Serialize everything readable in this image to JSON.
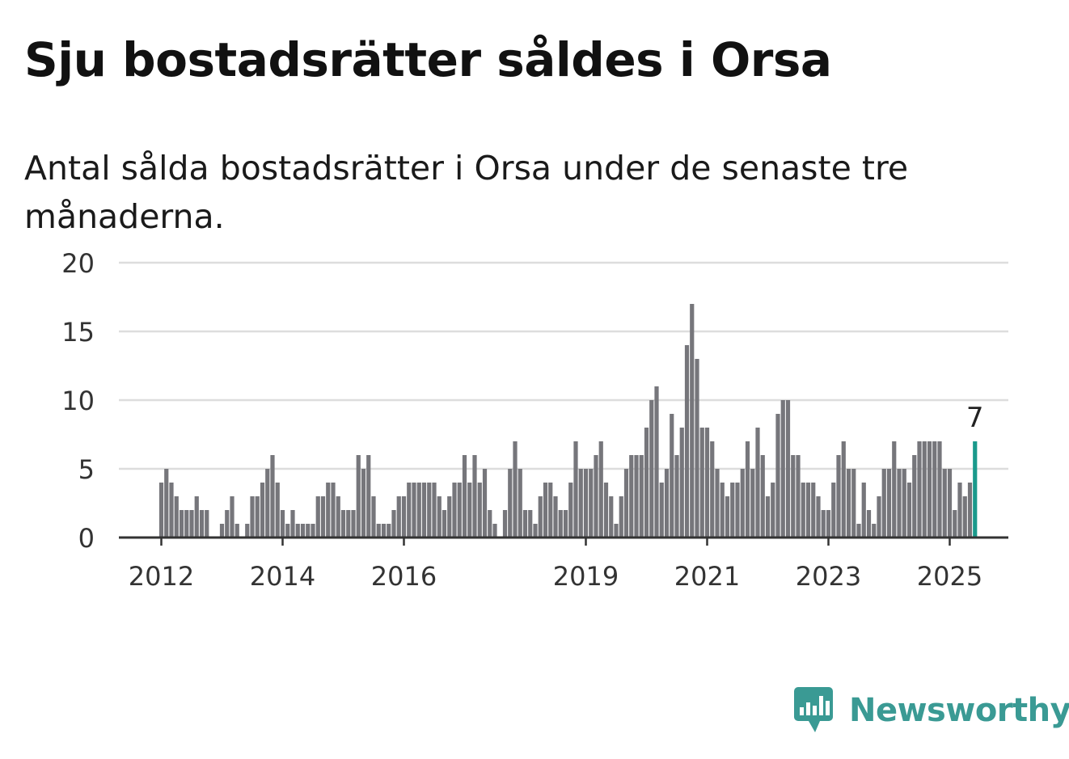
{
  "title": "Sju bostadsrätter såldes i Orsa",
  "subtitle": "Antal sålda bostadsrätter i Orsa under de senaste tre månaderna.",
  "brand": {
    "name": "Newsworthy",
    "color": "#3a9a94",
    "icon": "newsworthy-bar-chart-icon"
  },
  "chart_data": {
    "type": "bar",
    "ylim": [
      0,
      20
    ],
    "y_ticks": [
      0,
      5,
      10,
      15,
      20
    ],
    "x_tick_labels": [
      {
        "label": "2012",
        "date": "2012-01"
      },
      {
        "label": "2014",
        "date": "2014-01"
      },
      {
        "label": "2016",
        "date": "2016-01"
      },
      {
        "label": "2019",
        "date": "2019-01"
      },
      {
        "label": "2021",
        "date": "2021-01"
      },
      {
        "label": "2023",
        "date": "2023-01"
      },
      {
        "label": "2025",
        "date": "2025-01"
      }
    ],
    "grid": true,
    "bar_color": "#76767b",
    "highlight_color": "#1a9a8c",
    "start": "2012-01",
    "values": [
      4,
      5,
      4,
      3,
      2,
      2,
      2,
      3,
      2,
      2,
      0,
      0,
      1,
      2,
      3,
      1,
      0,
      1,
      3,
      3,
      4,
      5,
      6,
      4,
      2,
      1,
      2,
      1,
      1,
      1,
      1,
      3,
      3,
      4,
      4,
      3,
      2,
      2,
      2,
      6,
      5,
      6,
      3,
      1,
      1,
      1,
      2,
      3,
      3,
      4,
      4,
      4,
      4,
      4,
      4,
      3,
      2,
      3,
      4,
      4,
      6,
      4,
      6,
      4,
      5,
      2,
      1,
      0,
      2,
      5,
      7,
      5,
      2,
      2,
      1,
      3,
      4,
      4,
      3,
      2,
      2,
      4,
      7,
      5,
      5,
      5,
      6,
      7,
      4,
      3,
      1,
      3,
      5,
      6,
      6,
      6,
      8,
      10,
      11,
      4,
      5,
      9,
      6,
      8,
      14,
      17,
      13,
      8,
      8,
      7,
      5,
      4,
      3,
      4,
      4,
      5,
      7,
      5,
      8,
      6,
      3,
      4,
      9,
      10,
      10,
      6,
      6,
      4,
      4,
      4,
      3,
      2,
      2,
      4,
      6,
      7,
      5,
      5,
      1,
      4,
      2,
      1,
      3,
      5,
      5,
      7,
      5,
      5,
      4,
      6,
      7,
      7,
      7,
      7,
      7,
      5,
      5,
      2,
      4,
      3,
      4,
      7
    ],
    "highlight_last": true,
    "last_label": "7"
  }
}
